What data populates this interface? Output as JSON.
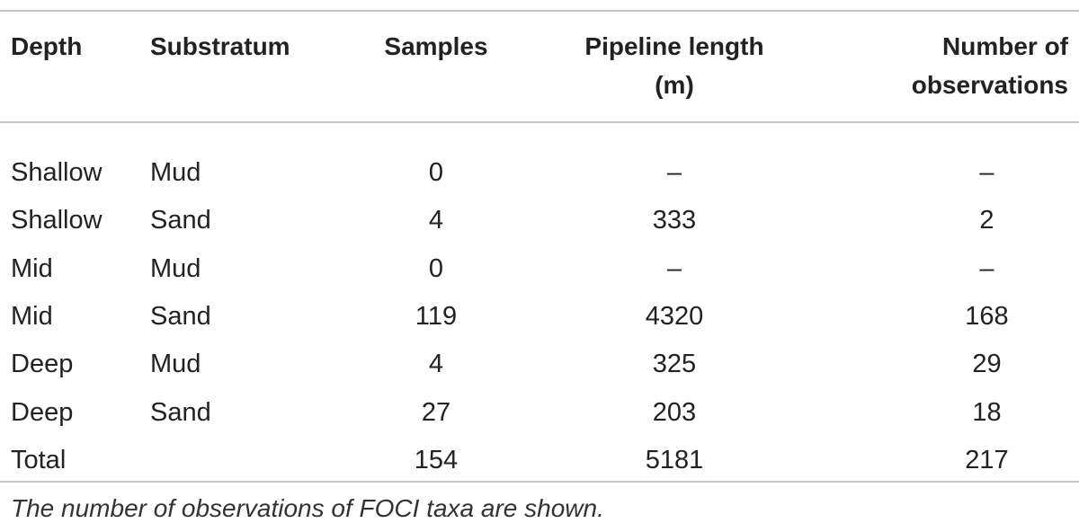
{
  "table": {
    "headers": {
      "depth": "Depth",
      "substratum": "Substratum",
      "samples": "Samples",
      "pipeline_line1": "Pipeline length",
      "pipeline_line2": "(m)",
      "observations_line1": "Number of",
      "observations_line2": "observations"
    },
    "rows": [
      {
        "depth": "Shallow",
        "substratum": "Mud",
        "samples": "0",
        "pipeline": "–",
        "observations": "–"
      },
      {
        "depth": "Shallow",
        "substratum": "Sand",
        "samples": "4",
        "pipeline": "333",
        "observations": "2"
      },
      {
        "depth": "Mid",
        "substratum": "Mud",
        "samples": "0",
        "pipeline": "–",
        "observations": "–"
      },
      {
        "depth": "Mid",
        "substratum": "Sand",
        "samples": "119",
        "pipeline": "4320",
        "observations": "168"
      },
      {
        "depth": "Deep",
        "substratum": "Mud",
        "samples": "4",
        "pipeline": "325",
        "observations": "29"
      },
      {
        "depth": "Deep",
        "substratum": "Sand",
        "samples": "27",
        "pipeline": "203",
        "observations": "18"
      },
      {
        "depth": "Total",
        "substratum": "",
        "samples": "154",
        "pipeline": "5181",
        "observations": "217"
      }
    ],
    "footnote": "The number of observations of FOCI taxa are shown."
  }
}
